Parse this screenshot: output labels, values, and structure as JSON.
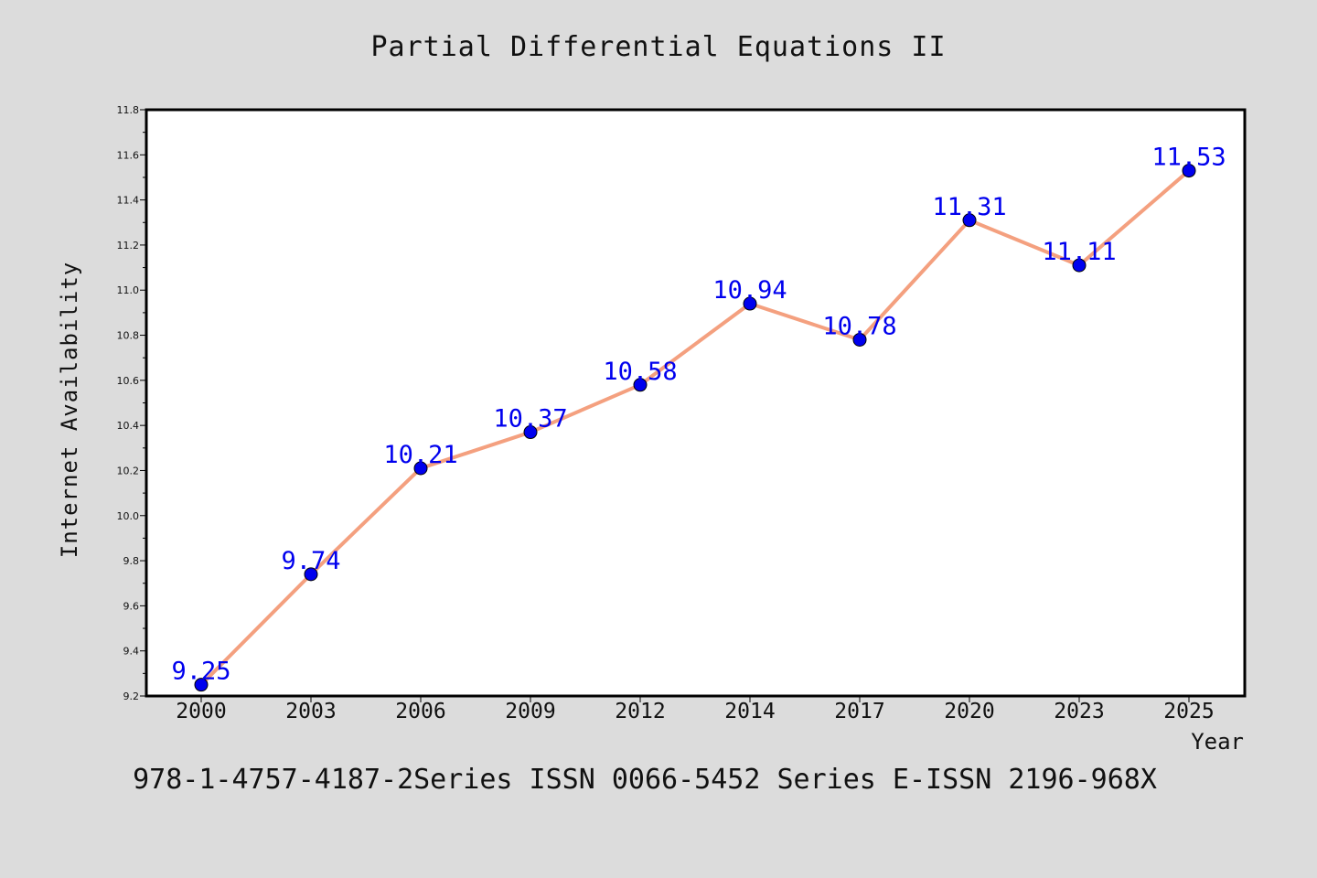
{
  "chart_data": {
    "type": "line",
    "title": "Partial Differential Equations II",
    "xlabel": "Year",
    "ylabel": "Internet Availability",
    "footer": "978-1-4757-4187-2Series ISSN 0066-5452 Series E-ISSN 2196-968X",
    "categories": [
      "2000",
      "2003",
      "2006",
      "2009",
      "2012",
      "2014",
      "2017",
      "2020",
      "2023",
      "2025"
    ],
    "series": [
      {
        "values": [
          9.25,
          9.74,
          10.21,
          10.37,
          10.58,
          10.94,
          10.78,
          11.31,
          11.11,
          11.53
        ]
      }
    ],
    "data_labels": [
      "9.25",
      "9.74",
      "10.21",
      "10.37",
      "10.58",
      "10.94",
      "10.78",
      "11.31",
      "11.11",
      "11.53"
    ],
    "ylim": [
      9.2,
      11.8
    ],
    "yticks": [
      "9.2",
      "9.4",
      "9.6",
      "9.8",
      "10.0",
      "10.2",
      "10.4",
      "10.6",
      "10.8",
      "11.0",
      "11.2",
      "11.4",
      "11.6",
      "11.8"
    ],
    "grid": false,
    "colors": {
      "line": "#f4a07f",
      "marker": "#0000ee",
      "label": "#0000ee",
      "background": "#dcdcdc",
      "plot_bg": "#ffffff"
    }
  }
}
